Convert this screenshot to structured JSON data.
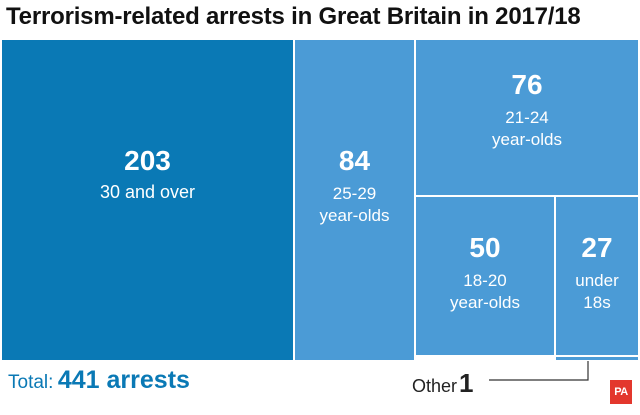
{
  "chart_data": {
    "type": "treemap",
    "title": "Terrorism-related arrests in Great Britain in 2017/18",
    "unit": "arrests",
    "total": {
      "label": "Total:",
      "value": "441 arrests"
    },
    "items": [
      {
        "label": "30 and over",
        "value": 203,
        "color": "#0a79b5"
      },
      {
        "label": "25-29\nyear-olds",
        "value": 84,
        "color": "#4b9bd6"
      },
      {
        "label": "21-24\nyear-olds",
        "value": 76,
        "color": "#4b9bd6"
      },
      {
        "label": "18-20\nyear-olds",
        "value": 50,
        "color": "#4b9bd6"
      },
      {
        "label": "under\n18s",
        "value": 27,
        "color": "#4b9bd6"
      },
      {
        "label": "Other",
        "value": 1,
        "color": "#4b9bd6"
      }
    ]
  },
  "logo": {
    "text": "PA",
    "color": "#e3372d"
  }
}
